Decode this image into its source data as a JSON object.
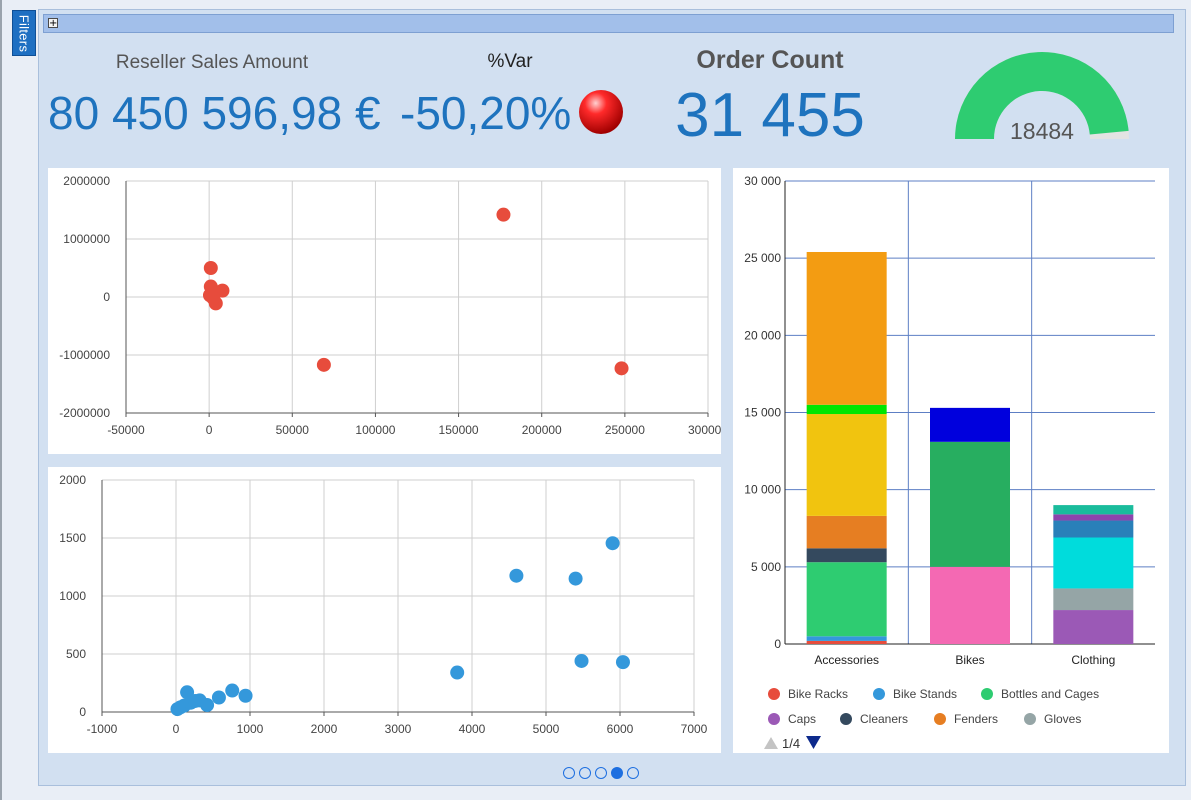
{
  "filters_label": "Filters",
  "expand_symbol": "+",
  "kpis": {
    "sales_label": "Reseller Sales Amount",
    "sales_value": "80 450 596,98 €",
    "var_label": "%Var",
    "var_value": "-50,20%",
    "order_label": "Order Count",
    "order_value": "31 455",
    "gauge_value": "18484",
    "gauge_fraction": 0.97
  },
  "chart_data": [
    {
      "type": "scatter",
      "color": "#e74c3c",
      "xlim": [
        -50000,
        300000
      ],
      "ylim": [
        -2000000,
        2000000
      ],
      "x_ticks": [
        "-50000",
        "0",
        "50000",
        "100000",
        "150000",
        "200000",
        "250000",
        "300000"
      ],
      "y_ticks": [
        "2000000",
        "1000000",
        "0",
        "-1000000",
        "-2000000"
      ],
      "points": [
        {
          "x": 1000,
          "y": 500000
        },
        {
          "x": 1000,
          "y": 180000
        },
        {
          "x": 500,
          "y": 30000
        },
        {
          "x": 3500,
          "y": 90000
        },
        {
          "x": 8000,
          "y": 110000
        },
        {
          "x": 4000,
          "y": -110000
        },
        {
          "x": 2500,
          "y": -20000
        },
        {
          "x": 177000,
          "y": 1420000
        },
        {
          "x": 69000,
          "y": -1170000
        },
        {
          "x": 248000,
          "y": -1230000
        }
      ]
    },
    {
      "type": "scatter",
      "color": "#3498db",
      "xlim": [
        -1000,
        7000
      ],
      "ylim": [
        0,
        2000
      ],
      "x_ticks": [
        "-1000",
        "0",
        "1000",
        "2000",
        "3000",
        "4000",
        "5000",
        "6000",
        "7000"
      ],
      "y_ticks": [
        "2000",
        "1500",
        "1000",
        "500",
        "0"
      ],
      "points": [
        {
          "x": 20,
          "y": 25
        },
        {
          "x": 60,
          "y": 40
        },
        {
          "x": 110,
          "y": 55
        },
        {
          "x": 150,
          "y": 170
        },
        {
          "x": 200,
          "y": 80
        },
        {
          "x": 260,
          "y": 95
        },
        {
          "x": 320,
          "y": 100
        },
        {
          "x": 420,
          "y": 60
        },
        {
          "x": 580,
          "y": 125
        },
        {
          "x": 760,
          "y": 185
        },
        {
          "x": 940,
          "y": 140
        },
        {
          "x": 3800,
          "y": 340
        },
        {
          "x": 4600,
          "y": 1175
        },
        {
          "x": 5400,
          "y": 1150
        },
        {
          "x": 5900,
          "y": 1455
        },
        {
          "x": 5480,
          "y": 440
        },
        {
          "x": 6040,
          "y": 430
        }
      ]
    },
    {
      "type": "bar",
      "stacked": true,
      "categories": [
        "Accessories",
        "Bikes",
        "Clothing"
      ],
      "ylim": [
        0,
        30000
      ],
      "y_ticks": [
        "30 000",
        "25 000",
        "20 000",
        "15 000",
        "10 000",
        "5 000",
        "0"
      ],
      "stacks": [
        [
          {
            "value": 200,
            "color": "#e74c3c"
          },
          {
            "value": 300,
            "color": "#3498db"
          },
          {
            "value": 4800,
            "color": "#2ecc71"
          },
          {
            "value": 900,
            "color": "#34495e"
          },
          {
            "value": 2100,
            "color": "#e67e22"
          },
          {
            "value": 6600,
            "color": "#f1c40f"
          },
          {
            "value": 600,
            "color": "#00e600"
          },
          {
            "value": 9900,
            "color": "#f39c12"
          }
        ],
        [
          {
            "value": 5000,
            "color": "#f469b3"
          },
          {
            "value": 8100,
            "color": "#27ae60"
          },
          {
            "value": 2200,
            "color": "#0000dd"
          }
        ],
        [
          {
            "value": 2200,
            "color": "#9b59b6"
          },
          {
            "value": 1400,
            "color": "#95a5a6"
          },
          {
            "value": 3300,
            "color": "#00dcdc"
          },
          {
            "value": 1100,
            "color": "#2980b9"
          },
          {
            "value": 400,
            "color": "#8e44ad"
          },
          {
            "value": 600,
            "color": "#1abc9c"
          }
        ]
      ],
      "legend": [
        {
          "name": "Bike Racks",
          "color": "#e74c3c"
        },
        {
          "name": "Bike Stands",
          "color": "#3498db"
        },
        {
          "name": "Bottles and Cages",
          "color": "#2ecc71"
        },
        {
          "name": "Caps",
          "color": "#9b59b6"
        },
        {
          "name": "Cleaners",
          "color": "#34495e"
        },
        {
          "name": "Fenders",
          "color": "#e67e22"
        },
        {
          "name": "Gloves",
          "color": "#95a5a6"
        }
      ],
      "legend_page": "1/4"
    }
  ],
  "carousel": {
    "count": 5,
    "active": 3
  }
}
